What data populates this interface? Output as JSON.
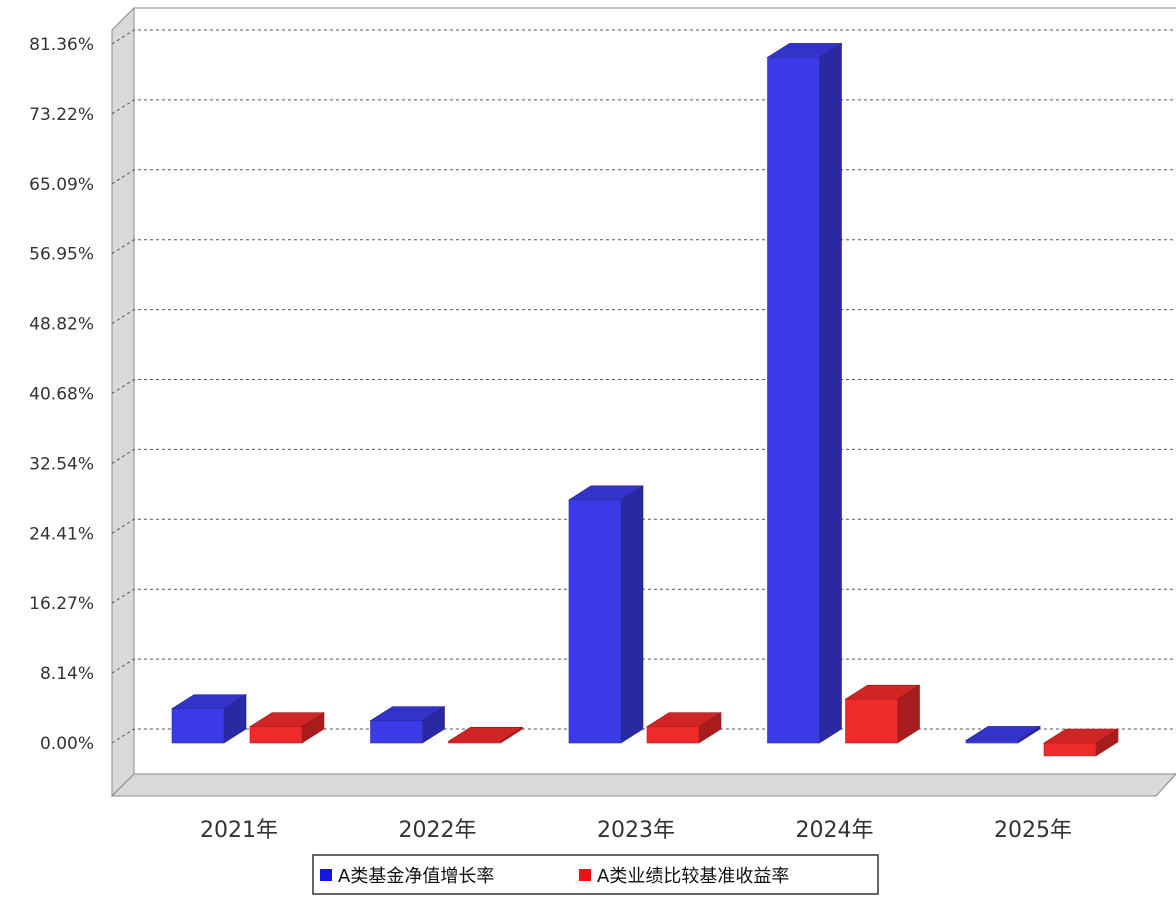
{
  "chart_data": {
    "type": "bar",
    "title": "",
    "xlabel": "",
    "ylabel": "",
    "categories": [
      "2021年",
      "2022年",
      "2023年",
      "2024年",
      "2025年"
    ],
    "yticks": [
      "0.00%",
      "8.14%",
      "16.27%",
      "24.41%",
      "32.54%",
      "40.68%",
      "48.82%",
      "56.95%",
      "65.09%",
      "73.22%",
      "81.36%"
    ],
    "ylim": [
      0,
      81.36
    ],
    "grid": true,
    "legend_position": "bottom",
    "series": [
      {
        "name": "A类基金净值增长率",
        "color": "#3a3ae6",
        "values": [
          4.0,
          2.6,
          28.3,
          79.8,
          0.3
        ]
      },
      {
        "name": "A类业绩比较基准收益率",
        "color": "#ee2a2a",
        "values": [
          1.9,
          0.2,
          1.9,
          5.1,
          -1.5
        ]
      }
    ]
  }
}
